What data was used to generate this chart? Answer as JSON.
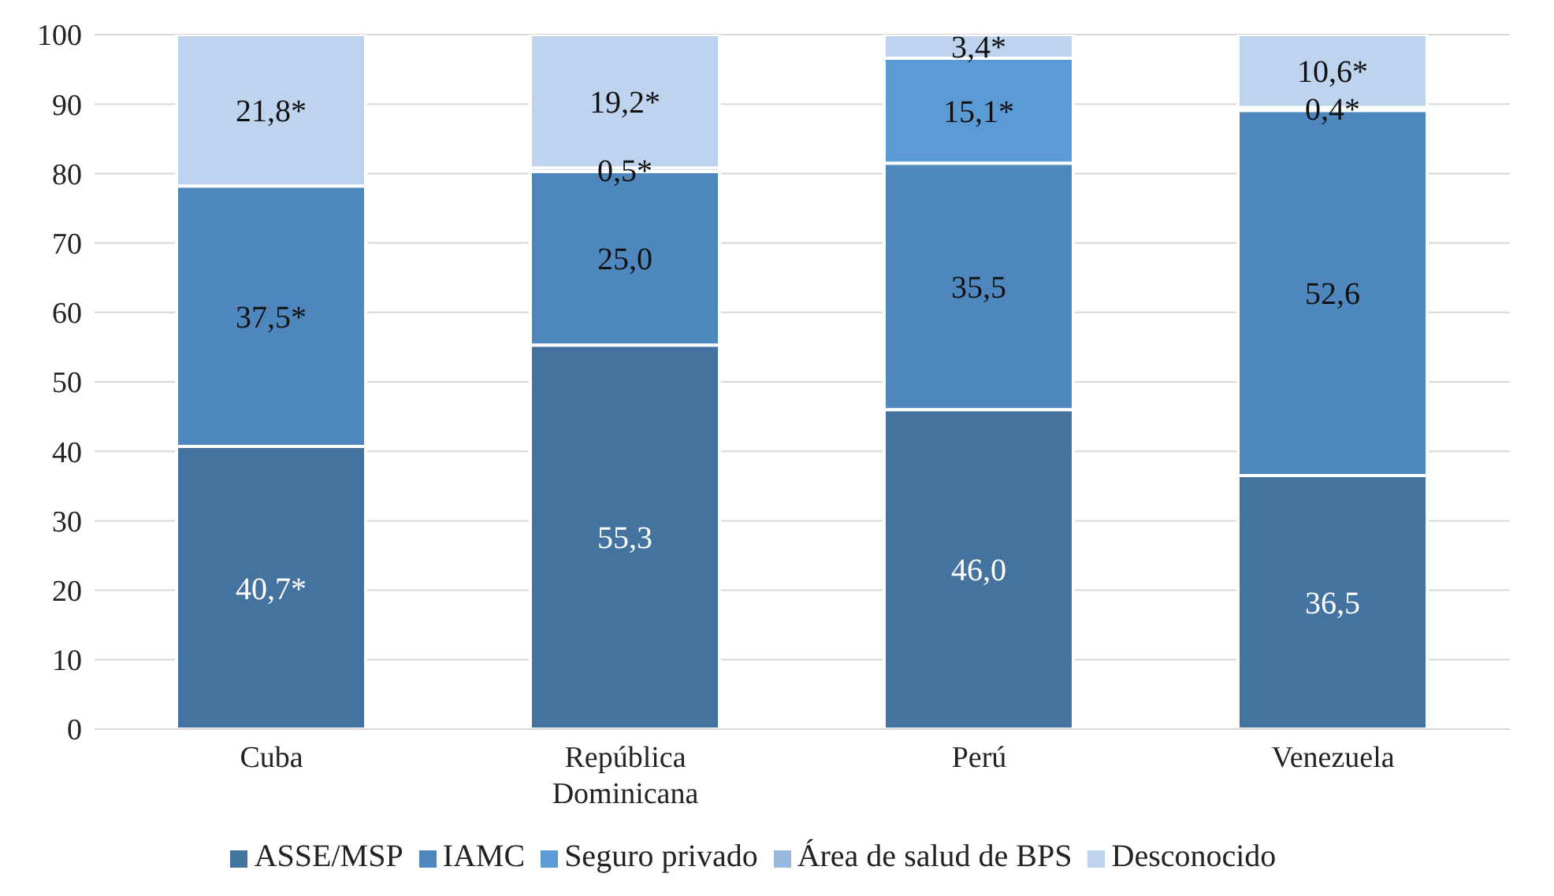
{
  "chart_data": {
    "type": "bar",
    "stacked": true,
    "categories": [
      "Cuba",
      "República Dominicana",
      "Perú",
      "Venezuela"
    ],
    "series": [
      {
        "name": "ASSE/MSP",
        "color": "#44739f",
        "values": [
          40.7,
          55.3,
          46.0,
          36.5
        ],
        "value_labels": [
          "40,7*",
          "55,3",
          "46,0",
          "36,5"
        ]
      },
      {
        "name": "IAMC",
        "color": "#4e87bd",
        "values": [
          37.5,
          25.0,
          35.5,
          52.6
        ],
        "value_labels": [
          "37,5*",
          "25,0",
          "35,5",
          "52,6"
        ]
      },
      {
        "name": "Seguro privado",
        "color": "#5b9bd5",
        "values": [
          null,
          null,
          15.1,
          null
        ],
        "value_labels": [
          null,
          null,
          "15,1*",
          null
        ]
      },
      {
        "name": "Área de salud de BPS",
        "color": "#98b8df",
        "values": [
          null,
          0.5,
          null,
          0.4
        ],
        "value_labels": [
          null,
          "0,5*",
          null,
          "0,4*"
        ]
      },
      {
        "name": "Desconocido",
        "color": "#bdd3ee",
        "values": [
          21.8,
          19.2,
          3.4,
          10.6
        ],
        "value_labels": [
          "21,8*",
          "19,2*",
          "3,4*",
          "10,6*"
        ]
      }
    ],
    "ylim": [
      0,
      100
    ],
    "yticks": [
      0,
      10,
      20,
      30,
      40,
      50,
      60,
      70,
      80,
      90,
      100
    ],
    "grid": "y",
    "legend": "bottom"
  }
}
